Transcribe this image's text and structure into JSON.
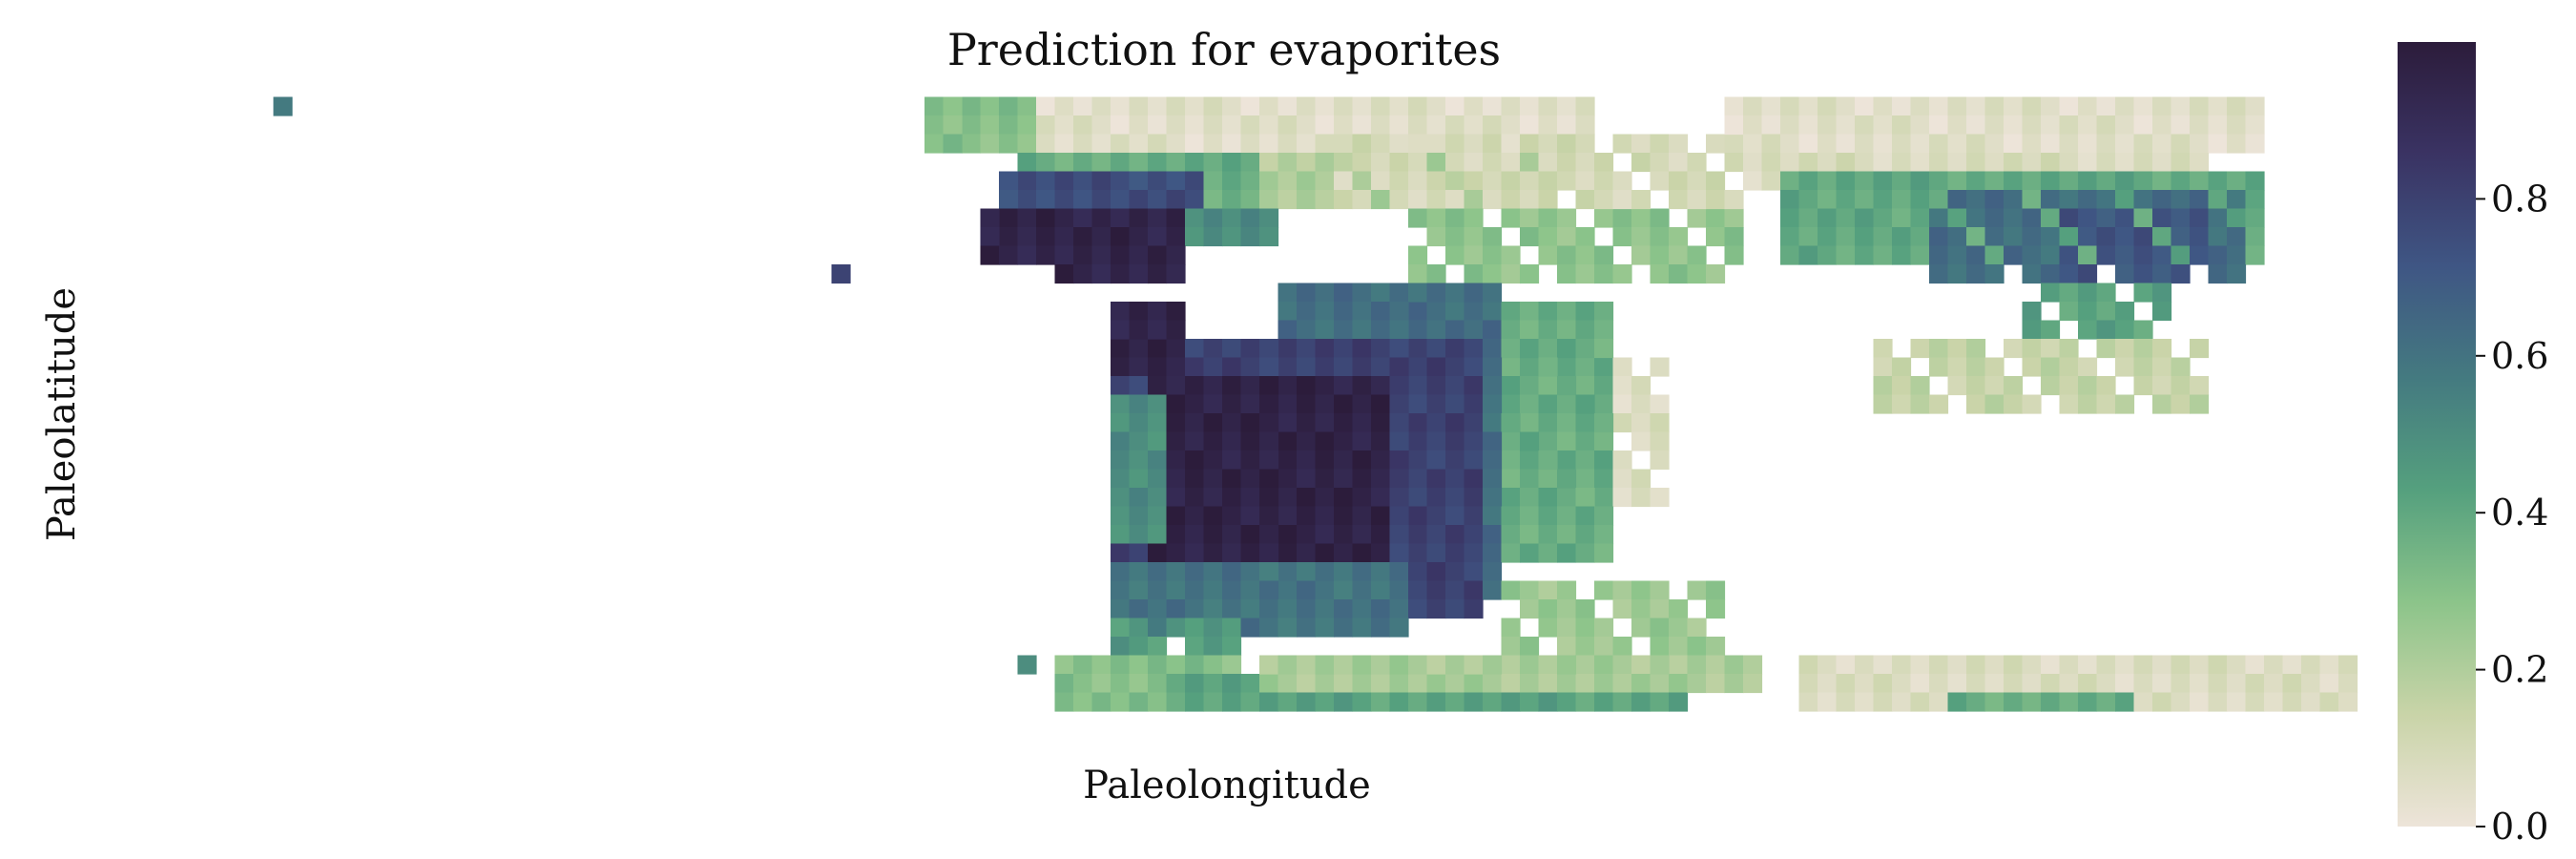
{
  "chart_data": {
    "type": "heatmap",
    "title": "Prediction for evaporites",
    "xlabel": "Paleolongitude",
    "ylabel": "Paleolatitude",
    "value_range": [
      0.0,
      1.0
    ],
    "colorbar": {
      "ticks": [
        0.0,
        0.2,
        0.4,
        0.6,
        0.8
      ],
      "tick_labels": [
        "0.0",
        "0.2",
        "0.4",
        "0.6",
        "0.8"
      ],
      "colormap": [
        "#ede4d9",
        "#c9d4a8",
        "#8cc48a",
        "#55a07e",
        "#447a80",
        "#3f5684",
        "#3a3363",
        "#2c1c3b"
      ]
    },
    "grid": {
      "cols": 70,
      "rows": 35
    },
    "regions": [
      {
        "name": "isolated-cell-1",
        "value": 0.55,
        "pattern": "rect",
        "cols": [
          7,
          7
        ],
        "rows": [
          1,
          1
        ]
      },
      {
        "name": "isolated-cell-2",
        "value": 0.8,
        "pattern": "rect",
        "cols": [
          37,
          37
        ],
        "rows": [
          10,
          10
        ]
      },
      {
        "name": "isolated-cell-3",
        "value": 0.55,
        "pattern": "rect",
        "cols": [
          47,
          47
        ],
        "rows": [
          31,
          31
        ]
      },
      {
        "name": "north-left-strip",
        "value": 0.05,
        "pattern": "dense",
        "cols": [
          44,
          77
        ],
        "rows": [
          1,
          3
        ]
      },
      {
        "name": "north-left-edge",
        "value": 0.3,
        "pattern": "dense",
        "cols": [
          42,
          47
        ],
        "rows": [
          1,
          3
        ]
      },
      {
        "name": "north-left-upper",
        "value": 0.38,
        "pattern": "dense",
        "cols": [
          47,
          62
        ],
        "rows": [
          4,
          6
        ]
      },
      {
        "name": "north-left-mid",
        "value": 0.2,
        "pattern": "dense",
        "cols": [
          60,
          75
        ],
        "rows": [
          4,
          6
        ]
      },
      {
        "name": "north-left-blue",
        "value": 0.75,
        "pattern": "dense",
        "cols": [
          46,
          56
        ],
        "rows": [
          5,
          8
        ]
      },
      {
        "name": "north-left-dark",
        "value": 0.95,
        "pattern": "dense",
        "cols": [
          45,
          55
        ],
        "rows": [
          7,
          9
        ]
      },
      {
        "name": "north-left-green",
        "value": 0.5,
        "pattern": "dense",
        "cols": [
          56,
          60
        ],
        "rows": [
          7,
          8
        ]
      },
      {
        "name": "north-left-dark-tail",
        "value": 0.95,
        "pattern": "dense",
        "cols": [
          49,
          55
        ],
        "rows": [
          9,
          10
        ]
      },
      {
        "name": "north-mid-strip",
        "value": 0.28,
        "pattern": "sparse",
        "cols": [
          68,
          85
        ],
        "rows": [
          7,
          10
        ]
      },
      {
        "name": "north-mid-pale",
        "value": 0.1,
        "pattern": "sparse",
        "cols": [
          64,
          85
        ],
        "rows": [
          3,
          6
        ]
      },
      {
        "name": "north-right-strip",
        "value": 0.05,
        "pattern": "dense",
        "cols": [
          85,
          113
        ],
        "rows": [
          1,
          3
        ]
      },
      {
        "name": "north-right-pale",
        "value": 0.08,
        "pattern": "dense",
        "cols": [
          86,
          110
        ],
        "rows": [
          4,
          5
        ]
      },
      {
        "name": "north-right-green",
        "value": 0.4,
        "pattern": "dense",
        "cols": [
          88,
          113
        ],
        "rows": [
          5,
          9
        ]
      },
      {
        "name": "north-right-teal",
        "value": 0.62,
        "pattern": "sparse",
        "cols": [
          96,
          112
        ],
        "rows": [
          6,
          10
        ]
      },
      {
        "name": "north-right-blue",
        "value": 0.72,
        "pattern": "sparse",
        "cols": [
          103,
          110
        ],
        "rows": [
          7,
          10
        ]
      },
      {
        "name": "north-right-lower",
        "value": 0.42,
        "pattern": "sparse",
        "cols": [
          101,
          108
        ],
        "rows": [
          11,
          13
        ]
      },
      {
        "name": "north-right-tail",
        "value": 0.15,
        "pattern": "sparse",
        "cols": [
          93,
          110
        ],
        "rows": [
          14,
          17
        ]
      },
      {
        "name": "central-pale-east",
        "value": 0.07,
        "pattern": "sparse",
        "cols": [
          73,
          81
        ],
        "rows": [
          15,
          22
        ]
      },
      {
        "name": "central-green-east",
        "value": 0.38,
        "pattern": "dense",
        "cols": [
          68,
          78
        ],
        "rows": [
          12,
          25
        ]
      },
      {
        "name": "central-teal",
        "value": 0.62,
        "pattern": "dense",
        "cols": [
          61,
          72
        ],
        "rows": [
          11,
          27
        ]
      },
      {
        "name": "central-blue",
        "value": 0.8,
        "pattern": "dense",
        "cols": [
          52,
          71
        ],
        "rows": [
          14,
          28
        ]
      },
      {
        "name": "central-dark",
        "value": 0.96,
        "pattern": "dense",
        "cols": [
          54,
          66
        ],
        "rows": [
          16,
          27
        ]
      },
      {
        "name": "central-west-green",
        "value": 0.5,
        "pattern": "dense",
        "cols": [
          52,
          54
        ],
        "rows": [
          17,
          24
        ]
      },
      {
        "name": "central-top-dark",
        "value": 0.95,
        "pattern": "dense",
        "cols": [
          52,
          55
        ],
        "rows": [
          12,
          15
        ]
      },
      {
        "name": "central-south-teal",
        "value": 0.6,
        "pattern": "dense",
        "cols": [
          52,
          67
        ],
        "rows": [
          26,
          29
        ]
      },
      {
        "name": "central-south-green",
        "value": 0.45,
        "pattern": "sparse",
        "cols": [
          52,
          58
        ],
        "rows": [
          29,
          30
        ]
      },
      {
        "name": "south-mid-pale",
        "value": 0.25,
        "pattern": "sparse",
        "cols": [
          73,
          84
        ],
        "rows": [
          27,
          31
        ]
      },
      {
        "name": "south-strip-west",
        "value": 0.3,
        "pattern": "dense",
        "cols": [
          49,
          58
        ],
        "rows": [
          31,
          33
        ]
      },
      {
        "name": "south-strip-green",
        "value": 0.42,
        "pattern": "dense",
        "cols": [
          55,
          82
        ],
        "rows": [
          32,
          33
        ]
      },
      {
        "name": "south-strip-mid",
        "value": 0.22,
        "pattern": "dense",
        "cols": [
          60,
          86
        ],
        "rows": [
          31,
          32
        ]
      },
      {
        "name": "south-strip-east",
        "value": 0.07,
        "pattern": "dense",
        "cols": [
          89,
          118
        ],
        "rows": [
          31,
          33
        ]
      },
      {
        "name": "south-strip-east-green",
        "value": 0.38,
        "pattern": "dense",
        "cols": [
          97,
          106
        ],
        "rows": [
          33,
          33
        ]
      }
    ]
  }
}
